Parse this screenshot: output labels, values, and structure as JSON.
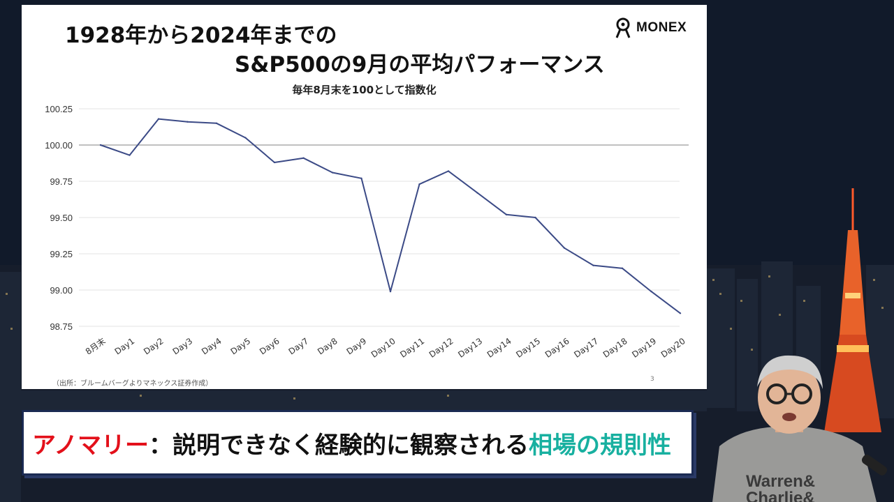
{
  "slide": {
    "title_line1": "1928年から2024年までの",
    "title_line2": "S&P500の9月の平均パフォーマンス",
    "brand": "MONEX",
    "source": "（出所：ブルームバーグよりマネックス証券作成）",
    "page_number": "3"
  },
  "chart_data": {
    "type": "line",
    "title": "1928年から2024年までの S&P500の9月の平均パフォーマンス",
    "subtitle": "毎年8月末を100として指数化",
    "categories": [
      "8月末",
      "Day1",
      "Day2",
      "Day3",
      "Day4",
      "Day5",
      "Day6",
      "Day7",
      "Day8",
      "Day9",
      "Day10",
      "Day11",
      "Day12",
      "Day13",
      "Day14",
      "Day15",
      "Day16",
      "Day17",
      "Day18",
      "Day19",
      "Day20"
    ],
    "series": [
      {
        "values": [
          100.0,
          99.93,
          100.18,
          100.16,
          100.15,
          100.05,
          99.88,
          99.91,
          99.81,
          99.77,
          98.99,
          99.73,
          99.82,
          99.67,
          99.52,
          99.5,
          99.29,
          99.17,
          99.15,
          98.99,
          98.84
        ],
        "color": "#3b4a86"
      }
    ],
    "ylim": [
      98.75,
      100.25
    ],
    "yticks": [
      100.25,
      100.0,
      99.75,
      99.5,
      99.25,
      99.0,
      98.75
    ],
    "ytick_labels": [
      "100.25",
      "100.00",
      "99.75",
      "99.50",
      "99.25",
      "99.00",
      "98.75"
    ],
    "grid": true,
    "baseline": 100.0,
    "xlabel": "",
    "ylabel": ""
  },
  "caption": {
    "part1": "アノマリー",
    "part2": "：説明できなく経験的に観察される",
    "part3": "相場の規則性"
  },
  "presenter": {
    "shirt_line1": "Warren&",
    "shirt_line2": "Charlie&"
  },
  "colors": {
    "caption_red": "#e3101a",
    "caption_green": "#18b0a0",
    "line": "#3b4a86",
    "frame": "#1b2a52"
  }
}
